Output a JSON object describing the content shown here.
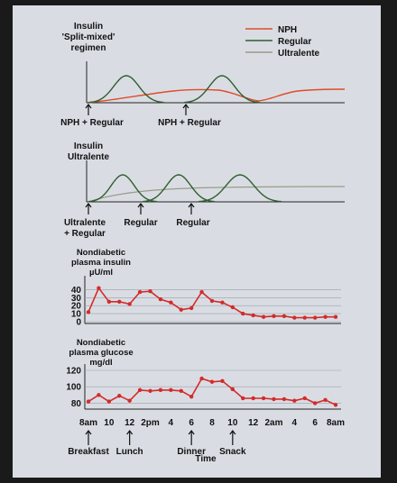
{
  "colors": {
    "nph": "#e04b2a",
    "regular": "#2f5e2f",
    "ultralente": "#9a9a8a",
    "curve": "#d42a2a"
  },
  "legend": {
    "nph": "NPH",
    "regular": "Regular",
    "ultralente": "Ultralente"
  },
  "panel1": {
    "title_lines": [
      "Insulin",
      "'Split-mixed'",
      "regimen"
    ],
    "arrow_labels": [
      "NPH + Regular",
      "NPH + Regular"
    ]
  },
  "panel2": {
    "title_lines": [
      "Insulin",
      "Ultralente"
    ],
    "arrow_labels": [
      [
        "Ultralente",
        "+ Regular"
      ],
      [
        "Regular"
      ],
      [
        "Regular"
      ]
    ]
  },
  "chart_data": [
    {
      "type": "line",
      "title": "Nondiabetic plasma insulin",
      "ylabel": "µU/ml",
      "ylim": [
        0,
        45
      ],
      "yticks": [
        0,
        10,
        20,
        30,
        40
      ],
      "x": [
        "8am",
        "9",
        "10",
        "11",
        "12",
        "1",
        "2pm",
        "3",
        "4",
        "5",
        "6",
        "7",
        "8",
        "9",
        "10",
        "11",
        "12",
        "1",
        "2am",
        "3",
        "4",
        "5",
        "6",
        "7",
        "8am"
      ],
      "series": [
        {
          "values": [
            12,
            42,
            25,
            25,
            22,
            37,
            38,
            28,
            24,
            15,
            17,
            37,
            26,
            24,
            18,
            10,
            8,
            6,
            7,
            7,
            5,
            5,
            5,
            6,
            6
          ]
        }
      ]
    },
    {
      "type": "line",
      "title": "Nondiabetic plasma glucose",
      "ylabel": "mg/dl",
      "ylim": [
        75,
        120
      ],
      "yticks": [
        80,
        100,
        120
      ],
      "x": [
        "8am",
        "9",
        "10",
        "11",
        "12",
        "1",
        "2pm",
        "3",
        "4",
        "5",
        "6",
        "7",
        "8",
        "9",
        "10",
        "11",
        "12",
        "1",
        "2am",
        "3",
        "4",
        "5",
        "6",
        "7",
        "8am"
      ],
      "series": [
        {
          "values": [
            82,
            90,
            82,
            89,
            83,
            96,
            95,
            96,
            96,
            95,
            88,
            110,
            106,
            107,
            97,
            86,
            86,
            86,
            85,
            85,
            83,
            86,
            80,
            84,
            78
          ]
        }
      ]
    }
  ],
  "x_axis": {
    "tick_labels": [
      "8am",
      "10",
      "12",
      "2pm",
      "4",
      "6",
      "8",
      "10",
      "12",
      "2am",
      "4",
      "6",
      "8am"
    ],
    "title": "Time"
  },
  "meals": [
    "Breakfast",
    "Lunch",
    "Dinner",
    "Snack"
  ]
}
